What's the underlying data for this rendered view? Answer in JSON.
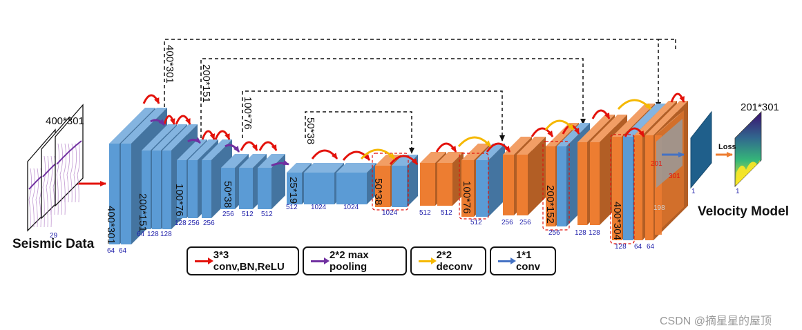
{
  "input": {
    "label": "Seismic Data",
    "size": "400*301",
    "channels": "29"
  },
  "output": {
    "label": "Velocity Model",
    "size": "201*301",
    "loss": "Loss",
    "channels_a": "1",
    "channels_b": "1"
  },
  "legend": [
    {
      "label": "3*3 conv,BN,ReLU",
      "color": "#e3120b"
    },
    {
      "label": "2*2 max pooling",
      "color": "#7030a0"
    },
    {
      "label": "2*2 deconv",
      "color": "#f5b800"
    },
    {
      "label": "1*1 conv",
      "color": "#4472c4"
    }
  ],
  "skip_labels": [
    "400*301",
    "200*151",
    "100*76",
    "50*38"
  ],
  "encoder_sizes": [
    "400*301",
    "200*151",
    "100*76",
    "50*38",
    "25*19"
  ],
  "decoder_sizes": [
    "50*38",
    "100*76",
    "200*152",
    "400*304"
  ],
  "channel_labels": {
    "e1": [
      "64",
      "64"
    ],
    "e2": [
      "64",
      "128",
      "128"
    ],
    "e3": [
      "128",
      "256",
      "256"
    ],
    "e4": [
      "256",
      "512",
      "512"
    ],
    "e5": [
      "512",
      "1024",
      "1024"
    ],
    "d1": [
      "1024",
      "512",
      "512"
    ],
    "d2": [
      "512",
      "256",
      "256"
    ],
    "d3": [
      "256",
      "128",
      "128"
    ],
    "d4": [
      "128",
      "64",
      "64"
    ]
  },
  "crop": {
    "label_a": "201",
    "label_b": "301",
    "label_c": "198"
  },
  "watermark": "CSDN @摘星星的屋顶",
  "colors": {
    "encoder": "#5b9bd5",
    "decoder": "#ed7d31",
    "conv": "#e3120b",
    "pool": "#7030a0",
    "deconv": "#f5b800",
    "onebyone": "#4472c4",
    "channel_text": "#1f1faa"
  }
}
